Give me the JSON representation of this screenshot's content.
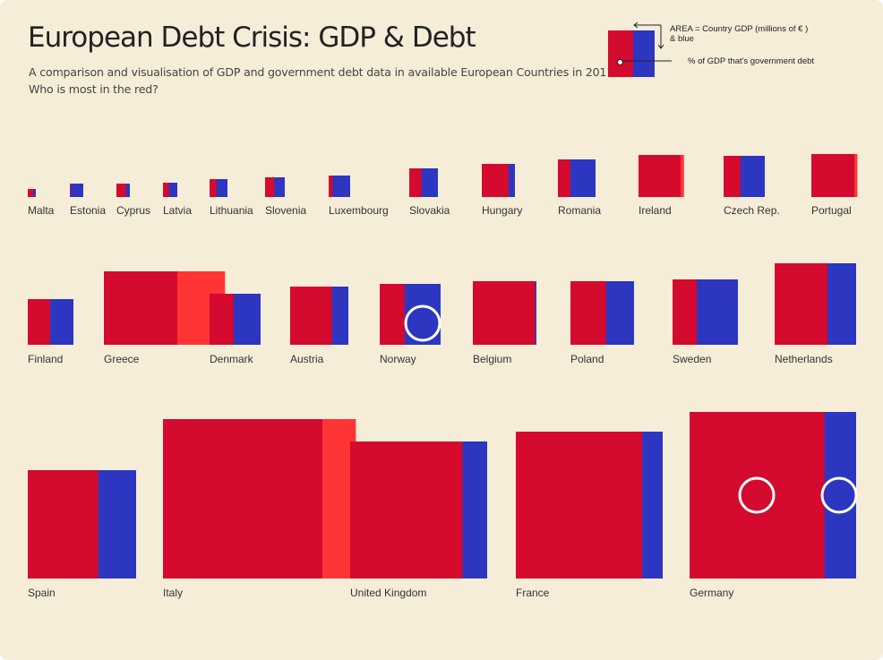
{
  "header": {
    "title": "European Debt Crisis: GDP & Debt",
    "subtitle_line1": "A comparison and visualisation of GDP and government debt data in available European Countries in 2011.",
    "subtitle_line2": "Who is most in the red?"
  },
  "legend": {
    "area_line1": "AREA = Country GDP (millions of  € )",
    "area_line2": "& blue",
    "pct_label": "% of GDP that's government debt"
  },
  "colors": {
    "debt": "#d40a2e",
    "debt_over_100": "#ff3535",
    "remaining_gdp": "#2d36c0",
    "background": "#f6edd8"
  },
  "chart_data": {
    "type": "treemap-squares",
    "rows": [
      [
        {
          "name": "Malta",
          "debt_pct": 70
        },
        {
          "name": "Estonia",
          "debt_pct": 6
        },
        {
          "name": "Cyprus",
          "debt_pct": 71
        },
        {
          "name": "Latvia",
          "debt_pct": 42
        },
        {
          "name": "Lithuania",
          "debt_pct": 38
        },
        {
          "name": "Slovenia",
          "debt_pct": 47
        },
        {
          "name": "Luxembourg",
          "debt_pct": 18
        },
        {
          "name": "Slovakia",
          "debt_pct": 43
        },
        {
          "name": "Hungary",
          "debt_pct": 81
        },
        {
          "name": "Romania",
          "debt_pct": 33
        },
        {
          "name": "Ireland",
          "debt_pct": 108
        },
        {
          "name": "Czech Rep.",
          "debt_pct": 41
        },
        {
          "name": "Portugal",
          "debt_pct": 107
        }
      ],
      [
        {
          "name": "Finland",
          "debt_pct": 49
        },
        {
          "name": "Greece",
          "debt_pct": 165
        },
        {
          "name": "Denmark",
          "debt_pct": 47
        },
        {
          "name": "Austria",
          "debt_pct": 72
        },
        {
          "name": "Norway",
          "debt_pct": 41
        },
        {
          "name": "Belgium",
          "debt_pct": 98
        },
        {
          "name": "Poland",
          "debt_pct": 56
        },
        {
          "name": "Sweden",
          "debt_pct": 37
        },
        {
          "name": "Netherlands",
          "debt_pct": 65
        }
      ],
      [
        {
          "name": "Spain",
          "debt_pct": 65
        },
        {
          "name": "Italy",
          "debt_pct": 121
        },
        {
          "name": "United Kingdom",
          "debt_pct": 82
        },
        {
          "name": "France",
          "debt_pct": 86
        },
        {
          "name": "Germany",
          "debt_pct": 81
        }
      ]
    ],
    "highlights": [
      "Norway",
      "Germany"
    ]
  }
}
